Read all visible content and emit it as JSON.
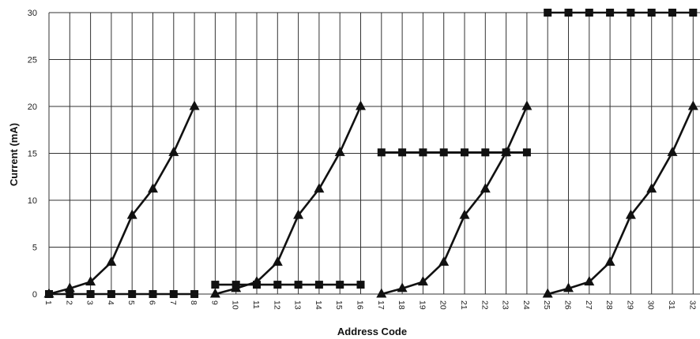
{
  "chart_data": {
    "type": "line",
    "title": "",
    "xlabel": "Address Code",
    "ylabel": "Current (mA)",
    "ylim": [
      0,
      30
    ],
    "y_ticks": [
      "0",
      "5",
      "10",
      "15",
      "20",
      "25",
      "30"
    ],
    "x_ticks": [
      "1",
      "2",
      "3",
      "4",
      "5",
      "6",
      "7",
      "8",
      "9",
      "10",
      "11",
      "12",
      "13",
      "14",
      "15",
      "16",
      "17",
      "18",
      "19",
      "20",
      "21",
      "22",
      "23",
      "24",
      "25",
      "26",
      "27",
      "28",
      "29",
      "30",
      "31",
      "32"
    ],
    "grid": true,
    "colors": {
      "line": "#111111",
      "grid": "#333333",
      "text": "#222222"
    },
    "series": [
      {
        "marker": "triangle",
        "x": [
          1,
          2,
          3,
          4,
          5,
          6,
          7,
          8
        ],
        "values": [
          0,
          0.6,
          1.3,
          3.4,
          8.4,
          11.2,
          15.1,
          20
        ]
      },
      {
        "marker": "square",
        "x": [
          1,
          2,
          3,
          4,
          5,
          6,
          7,
          8
        ],
        "values": [
          0,
          0,
          0,
          0,
          0,
          0,
          0,
          0
        ]
      },
      {
        "marker": "triangle",
        "x": [
          9,
          10,
          11,
          12,
          13,
          14,
          15,
          16
        ],
        "values": [
          0,
          0.6,
          1.3,
          3.4,
          8.4,
          11.2,
          15.1,
          20
        ]
      },
      {
        "marker": "square",
        "x": [
          9,
          10,
          11,
          12,
          13,
          14,
          15,
          16
        ],
        "values": [
          1,
          1,
          1,
          1,
          1,
          1,
          1,
          1
        ]
      },
      {
        "marker": "triangle",
        "x": [
          17,
          18,
          19,
          20,
          21,
          22,
          23,
          24
        ],
        "values": [
          0,
          0.6,
          1.3,
          3.4,
          8.4,
          11.2,
          15.1,
          20
        ]
      },
      {
        "marker": "square",
        "x": [
          17,
          18,
          19,
          20,
          21,
          22,
          23,
          24
        ],
        "values": [
          15.1,
          15.1,
          15.1,
          15.1,
          15.1,
          15.1,
          15.1,
          15.1
        ]
      },
      {
        "marker": "triangle",
        "x": [
          25,
          26,
          27,
          28,
          29,
          30,
          31,
          32
        ],
        "values": [
          0,
          0.6,
          1.3,
          3.4,
          8.4,
          11.2,
          15.1,
          20
        ]
      },
      {
        "marker": "square",
        "x": [
          25,
          26,
          27,
          28,
          29,
          30,
          31,
          32
        ],
        "values": [
          30,
          30,
          30,
          30,
          30,
          30,
          30,
          30
        ]
      }
    ]
  }
}
